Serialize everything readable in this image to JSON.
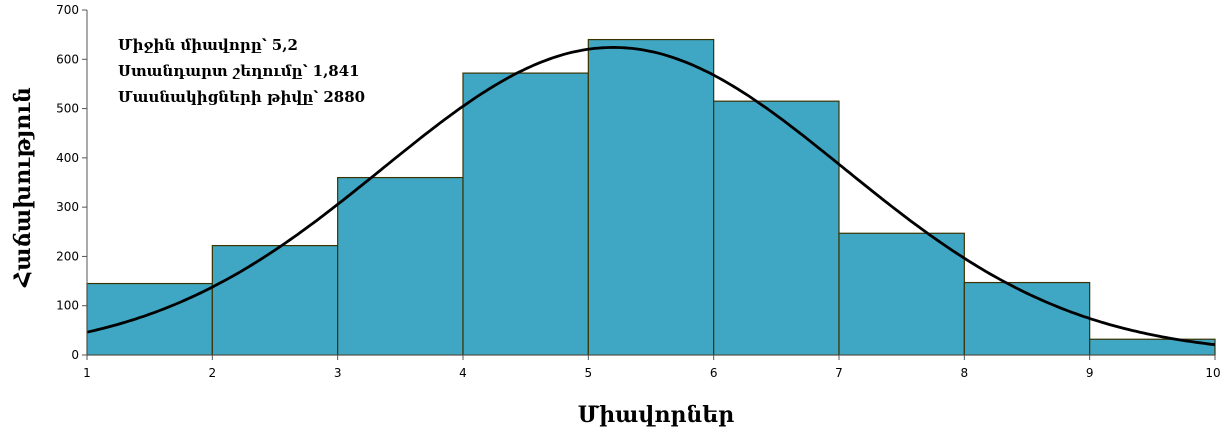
{
  "chart_data": {
    "type": "bar",
    "subtype": "histogram",
    "bins": [
      {
        "from": 1,
        "to": 2,
        "value": 145
      },
      {
        "from": 2,
        "to": 3,
        "value": 222
      },
      {
        "from": 3,
        "to": 4,
        "value": 360
      },
      {
        "from": 4,
        "to": 5,
        "value": 572
      },
      {
        "from": 5,
        "to": 6,
        "value": 640
      },
      {
        "from": 6,
        "to": 7,
        "value": 515
      },
      {
        "from": 7,
        "to": 8,
        "value": 247
      },
      {
        "from": 8,
        "to": 9,
        "value": 147
      },
      {
        "from": 9,
        "to": 10,
        "value": 32
      }
    ],
    "normal_curve": {
      "mean": 5.2,
      "sd": 1.841,
      "n": 2880,
      "bin_width": 1
    },
    "xlabel": "Միավորներ",
    "ylabel": "Հաճախություն",
    "xlim": [
      1,
      10
    ],
    "ylim": [
      0,
      700
    ],
    "x_ticks": [
      "1",
      "2",
      "3",
      "4",
      "5",
      "6",
      "7",
      "8",
      "9",
      "10"
    ],
    "y_ticks": [
      "0",
      "100",
      "200",
      "300",
      "400",
      "500",
      "600",
      "700"
    ],
    "annotation_lines": [
      "Միջին միավորը՝ 5,2",
      "Ստանդարտ շեղումը՝ 1,841",
      "Մասնակիցների թիվը՝ 2880"
    ],
    "grid": false,
    "colors": {
      "bar_fill": "#3fa7c4",
      "bar_edge": "#3a3300",
      "curve": "#000000",
      "axis": "#555555"
    }
  }
}
